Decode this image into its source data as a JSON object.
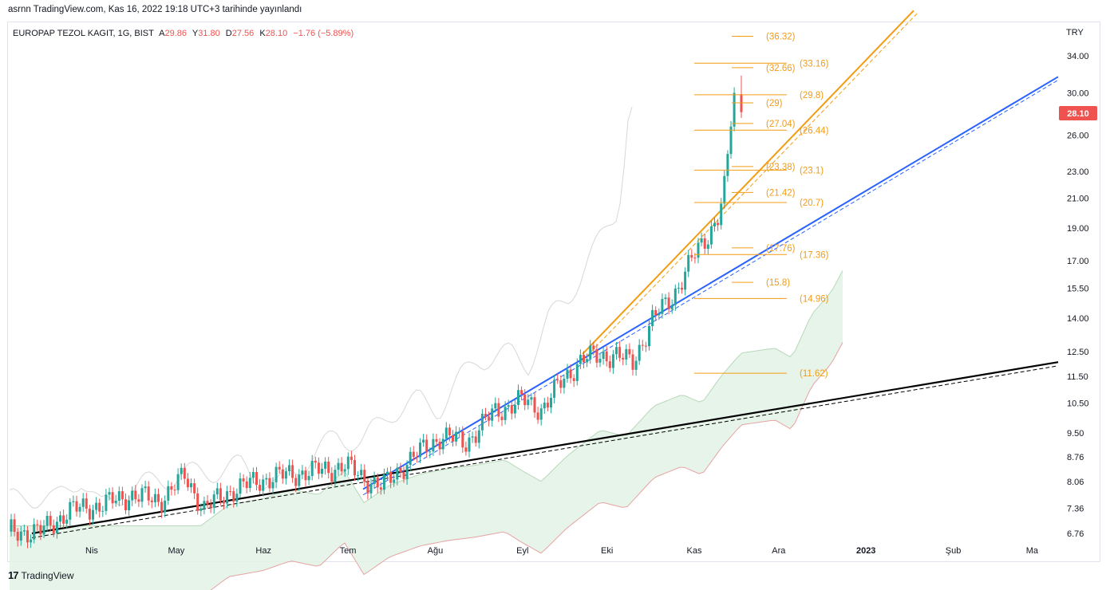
{
  "header": {
    "published_line": "asrnn TradingView.com, Kas 16, 2022 19:18 UTC+3 tarihinde yayınlandı"
  },
  "legend": {
    "symbol": "EUROPAP TEZOL KAGIT, 1G, BIST",
    "open_label": "A",
    "open": "29.86",
    "high_label": "Y",
    "high": "31.80",
    "low_label": "D",
    "low": "27.56",
    "close_label": "K",
    "close": "28.10",
    "change": "−1.76 (−5.89%)"
  },
  "footer": {
    "brand": "TradingView"
  },
  "colors": {
    "up": "#26a69a",
    "down": "#ef5350",
    "fib": "#f39c12",
    "blue_line": "#2962ff",
    "black_line": "#000000",
    "cloud_green": "#e3f2e5",
    "cloud_red": "#fbe3e3",
    "lagging": "#d7d7d7"
  },
  "chart_data": {
    "type": "candlestick",
    "currency": "TRY",
    "last_price": "28.10",
    "y_axis": {
      "scale": "log",
      "ticks": [
        "34.00",
        "30.00",
        "26.00",
        "23.00",
        "21.00",
        "19.00",
        "17.00",
        "15.50",
        "14.00",
        "12.50",
        "11.50",
        "10.50",
        "9.50",
        "8.76",
        "8.06",
        "7.36",
        "6.76"
      ]
    },
    "x_axis": {
      "labels": [
        "Nis",
        "May",
        "Haz",
        "Tem",
        "Ağu",
        "Eyl",
        "Eki",
        "Kas",
        "Ara",
        "2023",
        "Şub",
        "Ma"
      ]
    },
    "close_path": [
      [
        "2022-03-14",
        6.8
      ],
      [
        "2022-03-24",
        7.3
      ],
      [
        "2022-04-05",
        7.45
      ],
      [
        "2022-04-15",
        7.7
      ],
      [
        "2022-04-25",
        7.55
      ],
      [
        "2022-05-04",
        8.2
      ],
      [
        "2022-05-11",
        7.35
      ],
      [
        "2022-05-20",
        7.8
      ],
      [
        "2022-05-31",
        8.1
      ],
      [
        "2022-06-10",
        8.25
      ],
      [
        "2022-06-20",
        8.35
      ],
      [
        "2022-06-30",
        8.5
      ],
      [
        "2022-07-06",
        8.2
      ],
      [
        "2022-07-13",
        7.9
      ],
      [
        "2022-07-22",
        8.6
      ],
      [
        "2022-08-03",
        9.4
      ],
      [
        "2022-08-12",
        9.2
      ],
      [
        "2022-08-22",
        10.2
      ],
      [
        "2022-09-01",
        10.6
      ],
      [
        "2022-09-08",
        10.3
      ],
      [
        "2022-09-15",
        11.3
      ],
      [
        "2022-09-22",
        12.2
      ],
      [
        "2022-10-04",
        12.4
      ],
      [
        "2022-10-10",
        12.0
      ],
      [
        "2022-10-17",
        13.9
      ],
      [
        "2022-10-24",
        15.0
      ],
      [
        "2022-10-31",
        17.0
      ],
      [
        "2022-11-06",
        18.6
      ],
      [
        "2022-11-10",
        20.0
      ],
      [
        "2022-11-12",
        22.0
      ],
      [
        "2022-11-14",
        27.0
      ],
      [
        "2022-11-15",
        29.86
      ],
      [
        "2022-11-16",
        28.1
      ]
    ],
    "last_candle": {
      "date": "2022-11-16",
      "open": 29.86,
      "high": 31.8,
      "low": 27.56,
      "close": 28.1
    },
    "fib_levels_left": [
      "36.32",
      "32.66",
      "29",
      "27.04",
      "23.38",
      "21.42",
      "17.76",
      "15.8"
    ],
    "fib_levels_right": [
      "33.16",
      "29.8",
      "26.44",
      "23.1",
      "20.7",
      "17.36",
      "14.96",
      "11.62"
    ]
  }
}
